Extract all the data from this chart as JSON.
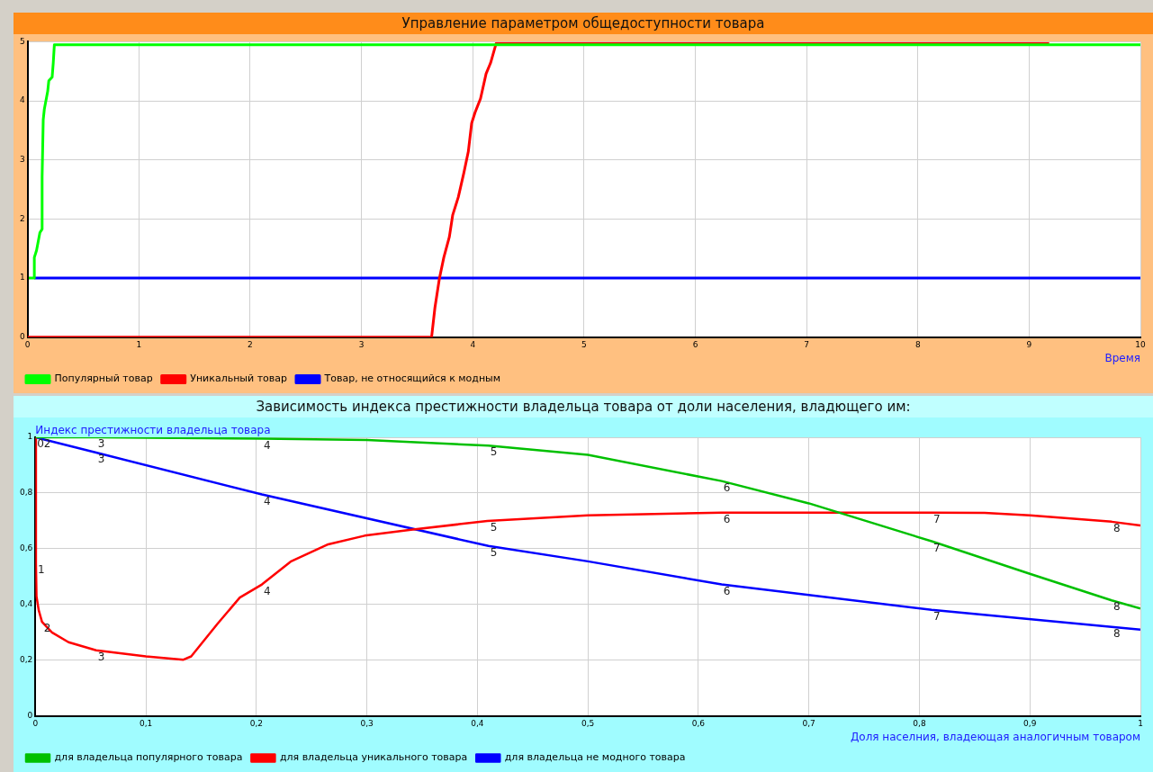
{
  "chart_data": [
    {
      "type": "line",
      "title": "Управление параметром общедоступности товара",
      "xlabel": "Время",
      "xlim": [
        0,
        10
      ],
      "ylim": [
        0,
        5
      ],
      "xticks": [
        0,
        1,
        2,
        3,
        4,
        5,
        6,
        7,
        8,
        9,
        10
      ],
      "yticks": [
        0,
        1,
        2,
        3,
        4,
        5
      ],
      "grid": true,
      "legend": "bottom",
      "marker": "none",
      "line_style": "solid",
      "series": [
        {
          "name": "Популярный товар",
          "color": "#00ff00",
          "x": [
            0.01,
            0.06,
            0.06,
            0.08,
            0.11,
            0.13,
            0.13,
            0.14,
            0.15,
            0.18,
            0.19,
            0.22,
            0.23,
            0.24,
            10
          ],
          "values": [
            1,
            1,
            1.35,
            1.47,
            1.77,
            1.83,
            2.72,
            3.68,
            3.86,
            4.16,
            4.34,
            4.4,
            4.64,
            4.95,
            4.95
          ]
        },
        {
          "name": "Уникальный товар",
          "color": "#ff0000",
          "x": [
            0,
            3.63,
            3.66,
            3.7,
            3.74,
            3.79,
            3.82,
            3.87,
            3.92,
            3.96,
            3.99,
            4.02,
            4.07,
            4.12,
            4.16,
            4.21,
            9.18
          ],
          "values": [
            0,
            0,
            0.5,
            0.99,
            1.35,
            1.7,
            2.07,
            2.37,
            2.78,
            3.14,
            3.62,
            3.8,
            4.04,
            4.46,
            4.64,
            4.97,
            4.97
          ]
        },
        {
          "name": "Товар, не относящийся к модным",
          "color": "#0000ff",
          "x": [
            0.06,
            10
          ],
          "values": [
            1,
            1
          ]
        }
      ]
    },
    {
      "type": "line",
      "title": "Зависимость индекса престижности владельца товара от доли населения, владющего им:",
      "xlabel": "Доля населния, владеющая аналогичным товаром",
      "ylabel": "Индекс престижности владельца товара",
      "xlim": [
        0,
        1
      ],
      "ylim": [
        0,
        1
      ],
      "xticks": [
        0,
        {
          "value": 0.1,
          "label": "0,1"
        },
        {
          "value": 0.2,
          "label": "0,2"
        },
        {
          "value": 0.3,
          "label": "0,3"
        },
        {
          "value": 0.4,
          "label": "0,4"
        },
        {
          "value": 0.5,
          "label": "0,5"
        },
        {
          "value": 0.6,
          "label": "0,6"
        },
        {
          "value": 0.7,
          "label": "0,7"
        },
        {
          "value": 0.8,
          "label": "0,8"
        },
        {
          "value": 0.9,
          "label": "0,9"
        },
        1
      ],
      "yticks": [
        0,
        {
          "value": 0.2,
          "label": "0,2"
        },
        {
          "value": 0.4,
          "label": "0,4"
        },
        {
          "value": 0.6,
          "label": "0,6"
        },
        {
          "value": 0.8,
          "label": "0,8"
        },
        1
      ],
      "grid": true,
      "legend": "bottom",
      "marker": "none",
      "line_style": "solid",
      "series": [
        {
          "name": "для владельца популярного товара",
          "color": "#00c000",
          "x": [
            0,
            0.055,
            0.205,
            0.3,
            0.41,
            0.5,
            0.621,
            0.7,
            0.811,
            0.9,
            0.974,
            1
          ],
          "values": [
            1,
            1,
            0.995,
            0.99,
            0.97,
            0.937,
            0.843,
            0.763,
            0.627,
            0.51,
            0.415,
            0.386
          ]
        },
        {
          "name": "для владельца уникального товара",
          "color": "#ff0000",
          "x": [
            0,
            0.0005,
            0.001,
            0.003,
            0.006,
            0.015,
            0.03,
            0.055,
            0.1,
            0.134,
            0.141,
            0.165,
            0.185,
            0.205,
            0.231,
            0.265,
            0.298,
            0.34,
            0.409,
            0.5,
            0.621,
            0.811,
            0.859,
            0.9,
            0.974,
            1
          ],
          "values": [
            1,
            0.55,
            0.43,
            0.38,
            0.338,
            0.3,
            0.265,
            0.236,
            0.214,
            0.202,
            0.214,
            0.332,
            0.425,
            0.472,
            0.554,
            0.616,
            0.647,
            0.668,
            0.7,
            0.72,
            0.73,
            0.73,
            0.729,
            0.72,
            0.697,
            0.684
          ]
        },
        {
          "name": "для владельца не модного товара",
          "color": "#0000ff",
          "x": [
            0,
            0.055,
            0.205,
            0.41,
            0.5,
            0.621,
            0.811,
            0.974,
            1
          ],
          "values": [
            1,
            0.945,
            0.795,
            0.61,
            0.555,
            0.472,
            0.381,
            0.32,
            0.31
          ]
        }
      ],
      "annotations": [
        {
          "text": "0",
          "x": 0,
          "y": 1
        },
        {
          "text": "2",
          "x": 0.006,
          "y": 1
        },
        {
          "text": "3",
          "x": 0.055,
          "y": 1
        },
        {
          "text": "4",
          "x": 0.205,
          "y": 0.995
        },
        {
          "text": "5",
          "x": 0.41,
          "y": 0.97
        },
        {
          "text": "6",
          "x": 0.621,
          "y": 0.843
        },
        {
          "text": "7",
          "x": 0.811,
          "y": 0.627
        },
        {
          "text": "8",
          "x": 0.974,
          "y": 0.415
        },
        {
          "text": "1",
          "x": 0.0005,
          "y": 0.55
        },
        {
          "text": "2",
          "x": 0.006,
          "y": 0.338
        },
        {
          "text": "3",
          "x": 0.055,
          "y": 0.236
        },
        {
          "text": "4",
          "x": 0.205,
          "y": 0.472
        },
        {
          "text": "5",
          "x": 0.41,
          "y": 0.7
        },
        {
          "text": "6",
          "x": 0.621,
          "y": 0.73
        },
        {
          "text": "7",
          "x": 0.811,
          "y": 0.73
        },
        {
          "text": "8",
          "x": 0.974,
          "y": 0.697
        },
        {
          "text": "3",
          "x": 0.055,
          "y": 0.945
        },
        {
          "text": "4",
          "x": 0.205,
          "y": 0.795
        },
        {
          "text": "5",
          "x": 0.41,
          "y": 0.61
        },
        {
          "text": "6",
          "x": 0.621,
          "y": 0.472
        },
        {
          "text": "7",
          "x": 0.811,
          "y": 0.381
        },
        {
          "text": "8",
          "x": 0.974,
          "y": 0.32
        }
      ]
    }
  ]
}
